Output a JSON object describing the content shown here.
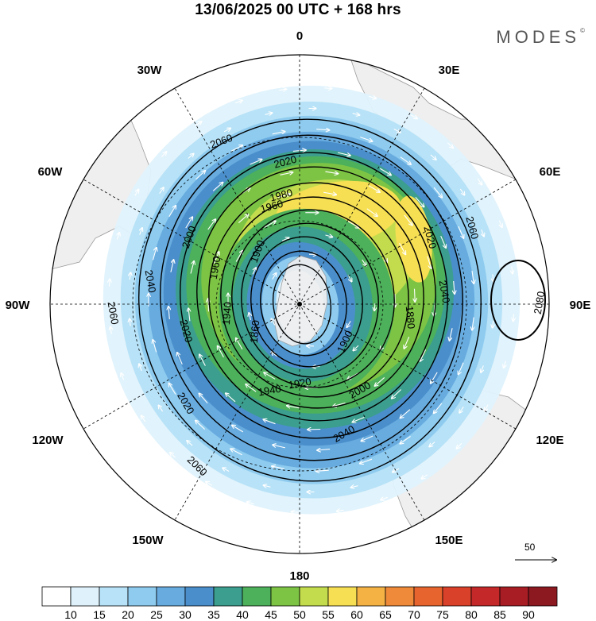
{
  "title": "13/06/2025  00 UTC  + 168 hrs",
  "brand": "MODES",
  "brand_mark": "©",
  "longitude_labels": {
    "top": "0",
    "bottom": "180",
    "left": "90W",
    "right": "90E",
    "l30w": "30W",
    "l60w": "60W",
    "l120w": "120W",
    "l150w": "150W",
    "l30e": "30E",
    "l60e": "60E",
    "l120e": "120E",
    "l150e": "150E"
  },
  "contours": [
    {
      "label": "2080"
    },
    {
      "label": "2060"
    },
    {
      "label": "2060"
    },
    {
      "label": "2060"
    },
    {
      "label": "2060"
    },
    {
      "label": "2040"
    },
    {
      "label": "2040"
    },
    {
      "label": "2040"
    },
    {
      "label": "2020"
    },
    {
      "label": "2020"
    },
    {
      "label": "2020"
    },
    {
      "label": "2020"
    },
    {
      "label": "2000"
    },
    {
      "label": "2000"
    },
    {
      "label": "1980"
    },
    {
      "label": "1960"
    },
    {
      "label": "1960"
    },
    {
      "label": "1940"
    },
    {
      "label": "1940"
    },
    {
      "label": "1920"
    },
    {
      "label": "1900"
    },
    {
      "label": "1900"
    },
    {
      "label": "1880"
    },
    {
      "label": "1860"
    }
  ],
  "vector_scale_label": "50",
  "colorbar": {
    "labels": [
      "10",
      "15",
      "20",
      "25",
      "30",
      "35",
      "40",
      "45",
      "50",
      "55",
      "60",
      "65",
      "70",
      "75",
      "80",
      "85",
      "90"
    ],
    "colors": [
      "#ffffff",
      "#dff2fc",
      "#b7e2f7",
      "#8ecbef",
      "#67abdf",
      "#4a8fcb",
      "#3c9e8e",
      "#4db05a",
      "#7dc445",
      "#c3dc4d",
      "#f6df52",
      "#f4b245",
      "#ee8a3a",
      "#e8642f",
      "#d9412a",
      "#c42828",
      "#a81d24",
      "#8c1820"
    ]
  },
  "colors": {
    "land": "#efefef",
    "coast": "#999999",
    "contour": "#000000",
    "arrow": "#ffffff"
  }
}
